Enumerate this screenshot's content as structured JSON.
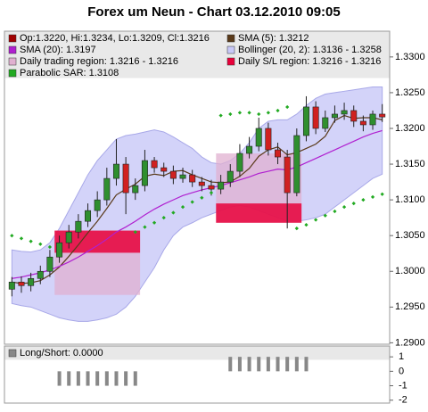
{
  "title": "Forex um Neun - Chart 03.12.2010 09:05",
  "chart_data": [
    {
      "type": "candlestick",
      "candles": {
        "name": "Op:1.3220, Hi:1.3234, Lo:1.3209, Cl:1.3216",
        "color": "#a00000",
        "color_up": "#2f8f2f",
        "color_down": "#d02020",
        "open": [
          1.2975,
          1.2985,
          1.298,
          1.299,
          1.3,
          1.302,
          1.304,
          1.3055,
          1.307,
          1.3085,
          1.31,
          1.313,
          1.315,
          1.311,
          1.312,
          1.3155,
          1.3145,
          1.314,
          1.313,
          1.3135,
          1.3125,
          1.312,
          1.3115,
          1.3125,
          1.314,
          1.3165,
          1.3175,
          1.32,
          1.317,
          1.316,
          1.311,
          1.319,
          1.323,
          1.32,
          1.3215,
          1.322,
          1.3225,
          1.321,
          1.3205,
          1.322
        ],
        "high": [
          1.2992,
          1.2993,
          1.2998,
          1.3008,
          1.303,
          1.305,
          1.3065,
          1.308,
          1.3095,
          1.3112,
          1.3145,
          1.3185,
          1.316,
          1.313,
          1.317,
          1.316,
          1.3152,
          1.3148,
          1.3145,
          1.3142,
          1.3132,
          1.3128,
          1.3135,
          1.315,
          1.3178,
          1.3188,
          1.3215,
          1.3208,
          1.318,
          1.317,
          1.32,
          1.3245,
          1.3238,
          1.3225,
          1.3232,
          1.3236,
          1.3232,
          1.3218,
          1.3225,
          1.3234
        ],
        "low": [
          1.2965,
          1.297,
          1.2972,
          1.2982,
          1.2992,
          1.3012,
          1.3032,
          1.3046,
          1.3062,
          1.3076,
          1.3092,
          1.312,
          1.308,
          1.31,
          1.3112,
          1.3138,
          1.3132,
          1.3122,
          1.3124,
          1.3118,
          1.3112,
          1.3106,
          1.3108,
          1.3118,
          1.3132,
          1.3158,
          1.3168,
          1.3162,
          1.315,
          1.306,
          1.3105,
          1.3182,
          1.3192,
          1.3195,
          1.3208,
          1.3212,
          1.3202,
          1.3196,
          1.3198,
          1.3209
        ],
        "close": [
          1.2985,
          1.298,
          1.299,
          1.3,
          1.302,
          1.304,
          1.3055,
          1.307,
          1.3085,
          1.31,
          1.313,
          1.315,
          1.311,
          1.312,
          1.3155,
          1.3145,
          1.314,
          1.313,
          1.3135,
          1.3125,
          1.312,
          1.3115,
          1.3125,
          1.314,
          1.3165,
          1.3175,
          1.32,
          1.317,
          1.316,
          1.311,
          1.319,
          1.323,
          1.32,
          1.3215,
          1.322,
          1.3225,
          1.321,
          1.3205,
          1.322,
          1.3216
        ]
      },
      "series": [
        {
          "name": "SMA (5): 1.3212",
          "color": "#5a3a1a",
          "values": [
            1.2985,
            1.2983,
            1.2984,
            1.2987,
            1.2995,
            1.3006,
            1.3021,
            1.3037,
            1.3054,
            1.307,
            1.3088,
            1.3107,
            1.3115,
            1.3122,
            1.3133,
            1.3136,
            1.3134,
            1.314,
            1.3141,
            1.3135,
            1.313,
            1.3125,
            1.3124,
            1.3125,
            1.3133,
            1.3144,
            1.3161,
            1.317,
            1.3174,
            1.3163,
            1.3166,
            1.3172,
            1.3178,
            1.3189,
            1.3211,
            1.3218,
            1.3214,
            1.3215,
            1.3215,
            1.3212
          ]
        },
        {
          "name": "SMA (20): 1.3197",
          "color": "#b020d0",
          "values": [
            1.299,
            1.2992,
            1.2995,
            1.2998,
            1.3002,
            1.3007,
            1.3013,
            1.302,
            1.3028,
            1.3036,
            1.3045,
            1.3055,
            1.3062,
            1.307,
            1.3079,
            1.3087,
            1.3094,
            1.31,
            1.3106,
            1.311,
            1.3114,
            1.3117,
            1.312,
            1.3124,
            1.3128,
            1.3132,
            1.3137,
            1.314,
            1.3143,
            1.3142,
            1.3146,
            1.3152,
            1.3158,
            1.3164,
            1.317,
            1.3176,
            1.3182,
            1.3188,
            1.3193,
            1.3197
          ]
        }
      ],
      "bollinger": {
        "name": "Bollinger (20, 2): 1.3136 - 1.3258",
        "color": "#c8c8f8",
        "upper": [
          1.303,
          1.3028,
          1.3027,
          1.303,
          1.304,
          1.306,
          1.3085,
          1.311,
          1.3135,
          1.3155,
          1.317,
          1.3185,
          1.319,
          1.3192,
          1.3195,
          1.3198,
          1.3195,
          1.3188,
          1.318,
          1.3172,
          1.316,
          1.3152,
          1.315,
          1.3155,
          1.3165,
          1.318,
          1.32,
          1.321,
          1.3212,
          1.3212,
          1.322,
          1.3232,
          1.3242,
          1.3248,
          1.325,
          1.3252,
          1.3254,
          1.3256,
          1.3258,
          1.3258
        ],
        "lower": [
          1.2955,
          1.2952,
          1.295,
          1.2945,
          1.294,
          1.2935,
          1.2932,
          1.293,
          1.293,
          1.2932,
          1.2935,
          1.294,
          1.295,
          1.2965,
          1.2985,
          1.3005,
          1.303,
          1.305,
          1.3062,
          1.3068,
          1.3075,
          1.308,
          1.3085,
          1.309,
          1.3092,
          1.309,
          1.3085,
          1.308,
          1.3075,
          1.307,
          1.307,
          1.3072,
          1.3075,
          1.308,
          1.309,
          1.31,
          1.311,
          1.312,
          1.313,
          1.3136
        ]
      },
      "trading_region": {
        "name": "Daily trading region: 1.3216 - 1.3216",
        "color": "#e0b0d0",
        "regions": [
          {
            "from": 5,
            "to": 13,
            "low": 1.2967,
            "high": 1.3057
          },
          {
            "from": 22,
            "to": 30,
            "low": 1.3068,
            "high": 1.3165
          }
        ]
      },
      "sl_region": {
        "name": "Daily S/L region: 1.3216 - 1.3216",
        "color": "#e8003a",
        "regions": [
          {
            "from": 5,
            "to": 13,
            "low": 1.3026,
            "high": 1.3057
          },
          {
            "from": 22,
            "to": 30,
            "low": 1.3068,
            "high": 1.3095
          }
        ]
      },
      "sar": {
        "name": "Parabolic SAR: 1.3108",
        "color": "#22aa22",
        "values": [
          1.305,
          1.3046,
          1.3042,
          1.3038,
          1.3034,
          null,
          null,
          null,
          null,
          null,
          null,
          null,
          null,
          1.3055,
          1.3062,
          1.3068,
          1.3075,
          1.3082,
          1.309,
          1.3097,
          1.3103,
          1.311,
          1.3218,
          1.322,
          1.3222,
          1.3222,
          1.322,
          1.3222,
          1.3225,
          1.323,
          1.306,
          1.3065,
          1.3072,
          1.3078,
          1.3084,
          1.309,
          1.3095,
          1.31,
          1.3104,
          1.3108
        ]
      },
      "ylim": [
        1.2898,
        1.3336
      ],
      "yticks": [
        {
          "value": 1.29,
          "label": "1.2900"
        },
        {
          "value": 1.295,
          "label": "1.2950"
        },
        {
          "value": 1.3,
          "label": "1.3000"
        },
        {
          "value": 1.305,
          "label": "1.3050"
        },
        {
          "value": 1.31,
          "label": "1.3100"
        },
        {
          "value": 1.315,
          "label": "1.3150"
        },
        {
          "value": 1.32,
          "label": "1.3200"
        },
        {
          "value": 1.325,
          "label": "1.3250"
        },
        {
          "value": 1.33,
          "label": "1.3300"
        }
      ]
    },
    {
      "type": "bar",
      "title": "Long/Short: 0.0000",
      "color": "#888888",
      "values": [
        0,
        0,
        0,
        0,
        0,
        -1,
        -1,
        -1,
        -1,
        -1,
        -1,
        -1,
        -1,
        -1,
        0,
        0,
        0,
        0,
        0,
        0,
        0,
        0,
        0,
        1,
        1,
        1,
        1,
        1,
        1,
        1,
        1,
        1,
        0,
        0,
        0,
        0,
        0,
        0,
        0,
        0
      ],
      "ylim": [
        -2.2,
        1.75
      ],
      "yticks": [
        1,
        0,
        -1,
        -2
      ]
    }
  ]
}
